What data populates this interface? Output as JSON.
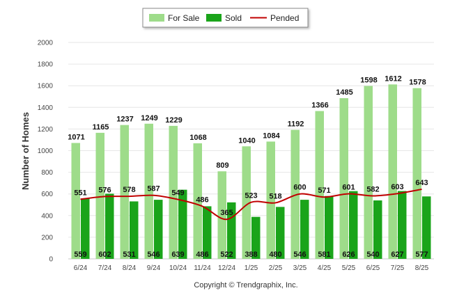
{
  "chart_data": {
    "type": "bar",
    "categories": [
      "6/24",
      "7/24",
      "8/24",
      "9/24",
      "10/24",
      "11/24",
      "12/24",
      "1/25",
      "2/25",
      "3/25",
      "4/25",
      "5/25",
      "6/25",
      "7/25",
      "8/25"
    ],
    "series": [
      {
        "name": "For Sale",
        "type": "bar",
        "color": "#9edc8a",
        "values": [
          1071,
          1165,
          1237,
          1249,
          1229,
          1068,
          809,
          1040,
          1084,
          1192,
          1366,
          1485,
          1598,
          1612,
          1578
        ]
      },
      {
        "name": "Sold",
        "type": "bar",
        "color": "#1aa41a",
        "values": [
          559,
          602,
          531,
          546,
          639,
          486,
          522,
          388,
          480,
          546,
          581,
          626,
          540,
          627,
          577
        ]
      },
      {
        "name": "Pended",
        "type": "line",
        "color": "#c00000",
        "values": [
          551,
          576,
          578,
          587,
          549,
          486,
          365,
          523,
          518,
          600,
          571,
          601,
          582,
          603,
          643
        ]
      }
    ],
    "title": "",
    "xlabel": "",
    "ylabel": "Number of Homes",
    "ylim": [
      0,
      2000
    ],
    "yticks": [
      0,
      200,
      400,
      600,
      800,
      1000,
      1200,
      1400,
      1600,
      1800,
      2000
    ],
    "grid": true,
    "legend": "top-center"
  },
  "footer": {
    "copyright": "Copyright © Trendgraphix, Inc."
  }
}
